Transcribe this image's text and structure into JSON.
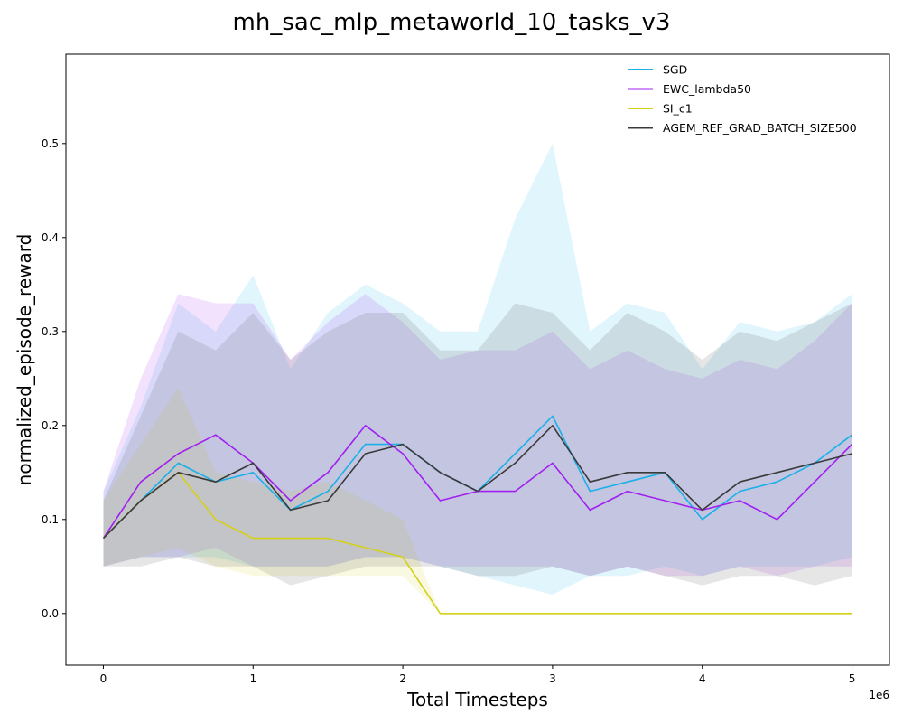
{
  "chart_data": {
    "type": "line",
    "title": "mh_sac_mlp_metaworld_10_tasks_v3",
    "xlabel": "Total Timesteps",
    "ylabel": "normalized_episode_reward",
    "x_offset_label": "1e6",
    "xlim": [
      -0.25,
      5.25
    ],
    "ylim": [
      -0.055,
      0.595
    ],
    "x_ticks": [
      0,
      1,
      2,
      3,
      4,
      5
    ],
    "x_tick_labels": [
      "0",
      "1",
      "2",
      "3",
      "4",
      "5"
    ],
    "y_ticks": [
      0.0,
      0.1,
      0.2,
      0.3,
      0.4,
      0.5
    ],
    "y_tick_labels": [
      "0.0",
      "0.1",
      "0.2",
      "0.3",
      "0.4",
      "0.5"
    ],
    "grid": false,
    "legend_position": "top-right",
    "x": [
      0,
      0.25,
      0.5,
      0.75,
      1.0,
      1.25,
      1.5,
      1.75,
      2.0,
      2.25,
      2.5,
      2.75,
      3.0,
      3.25,
      3.5,
      3.75,
      4.0,
      4.25,
      4.5,
      4.75,
      5.0
    ],
    "series": [
      {
        "name": "SGD",
        "color": "#1bb0e8",
        "values": [
          0.08,
          0.12,
          0.16,
          0.14,
          0.15,
          0.11,
          0.13,
          0.18,
          0.18,
          0.15,
          0.13,
          0.17,
          0.21,
          0.13,
          0.14,
          0.15,
          0.1,
          0.13,
          0.14,
          0.16,
          0.19
        ],
        "lower": [
          0.05,
          0.06,
          0.06,
          0.06,
          0.05,
          0.05,
          0.05,
          0.06,
          0.06,
          0.05,
          0.04,
          0.03,
          0.02,
          0.04,
          0.04,
          0.05,
          0.04,
          0.05,
          0.05,
          0.05,
          0.06
        ],
        "upper": [
          0.13,
          0.22,
          0.33,
          0.3,
          0.36,
          0.26,
          0.32,
          0.35,
          0.33,
          0.3,
          0.3,
          0.42,
          0.5,
          0.3,
          0.33,
          0.32,
          0.26,
          0.31,
          0.3,
          0.31,
          0.34
        ]
      },
      {
        "name": "EWC_lambda50",
        "color": "#a020f0",
        "values": [
          0.08,
          0.14,
          0.17,
          0.19,
          0.16,
          0.12,
          0.15,
          0.2,
          0.17,
          0.12,
          0.13,
          0.13,
          0.16,
          0.11,
          0.13,
          0.12,
          0.11,
          0.12,
          0.1,
          0.14,
          0.18
        ],
        "lower": [
          0.05,
          0.06,
          0.06,
          0.07,
          0.05,
          0.05,
          0.05,
          0.06,
          0.06,
          0.05,
          0.05,
          0.05,
          0.05,
          0.04,
          0.05,
          0.04,
          0.04,
          0.05,
          0.04,
          0.05,
          0.05
        ],
        "upper": [
          0.13,
          0.25,
          0.34,
          0.33,
          0.33,
          0.27,
          0.31,
          0.34,
          0.31,
          0.27,
          0.28,
          0.28,
          0.3,
          0.26,
          0.28,
          0.26,
          0.25,
          0.27,
          0.26,
          0.29,
          0.33
        ]
      },
      {
        "name": "SI_c1",
        "color": "#d4d017",
        "values": [
          0.08,
          0.12,
          0.15,
          0.1,
          0.08,
          0.08,
          0.08,
          0.07,
          0.06,
          0.0,
          0.0,
          0.0,
          0.0,
          0.0,
          0.0,
          0.0,
          0.0,
          0.0,
          0.0,
          0.0,
          0.0
        ],
        "lower": [
          0.05,
          0.06,
          0.07,
          0.05,
          0.04,
          0.04,
          0.04,
          0.04,
          0.04,
          0.0,
          0.0,
          0.0,
          0.0,
          0.0,
          0.0,
          0.0,
          0.0,
          0.0,
          0.0,
          0.0,
          0.0
        ],
        "upper": [
          0.12,
          0.18,
          0.24,
          0.15,
          0.14,
          0.13,
          0.14,
          0.12,
          0.1,
          0.0,
          0.0,
          0.0,
          0.0,
          0.0,
          0.0,
          0.0,
          0.0,
          0.0,
          0.0,
          0.0,
          0.0
        ]
      },
      {
        "name": "AGEM_REF_GRAD_BATCH_SIZE500",
        "color": "#3a3a3a",
        "values": [
          0.08,
          0.12,
          0.15,
          0.14,
          0.16,
          0.11,
          0.12,
          0.17,
          0.18,
          0.15,
          0.13,
          0.16,
          0.2,
          0.14,
          0.15,
          0.15,
          0.11,
          0.14,
          0.15,
          0.16,
          0.17
        ],
        "lower": [
          0.05,
          0.05,
          0.06,
          0.05,
          0.05,
          0.03,
          0.04,
          0.05,
          0.05,
          0.05,
          0.04,
          0.04,
          0.05,
          0.04,
          0.05,
          0.04,
          0.03,
          0.04,
          0.04,
          0.03,
          0.04
        ],
        "upper": [
          0.12,
          0.21,
          0.3,
          0.28,
          0.32,
          0.27,
          0.3,
          0.32,
          0.32,
          0.28,
          0.28,
          0.33,
          0.32,
          0.28,
          0.32,
          0.3,
          0.27,
          0.3,
          0.29,
          0.31,
          0.33
        ]
      }
    ]
  }
}
